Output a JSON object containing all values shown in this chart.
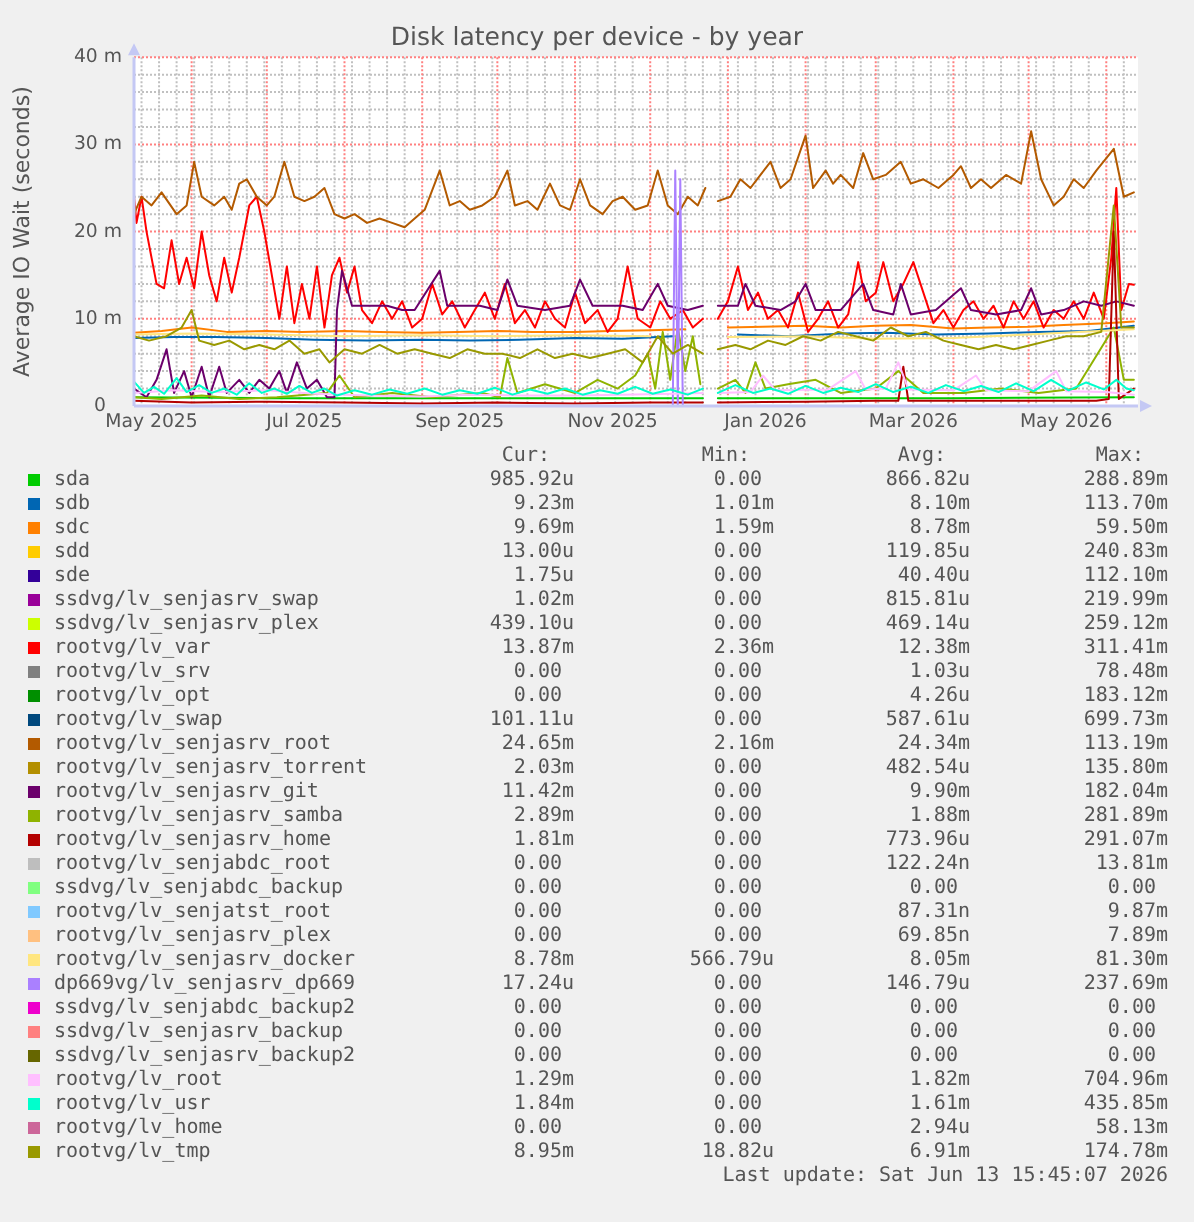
{
  "chart_data": {
    "type": "line",
    "title": "Disk latency per device - by year",
    "ylabel": "Average IO Wait (seconds)",
    "xlim": [
      "2025-05-09",
      "2026-06-13T15:45"
    ],
    "ylim": [
      0,
      40
    ],
    "xticks": [
      {
        "value": "2025-05-16",
        "label": "May 2025"
      },
      {
        "value": "2025-07-16",
        "label": "Jul 2025"
      },
      {
        "value": "2025-09-16",
        "label": "Sep 2025"
      },
      {
        "value": "2025-11-16",
        "label": "Nov 2025"
      },
      {
        "value": "2026-01-16",
        "label": "Jan 2026"
      },
      {
        "value": "2026-03-16",
        "label": "Mar 2026"
      },
      {
        "value": "2026-05-16",
        "label": "May 2026"
      },
      {
        "value": "2025-06-01",
        "label": null
      },
      {
        "value": "2025-07-01",
        "label": null
      },
      {
        "value": "2025-08-01",
        "label": null
      },
      {
        "value": "2025-09-01",
        "label": null
      },
      {
        "value": "2025-10-01",
        "label": null
      },
      {
        "value": "2025-11-01",
        "label": null
      },
      {
        "value": "2025-12-01",
        "label": null
      },
      {
        "value": "2026-01-01",
        "label": null
      },
      {
        "value": "2026-02-01",
        "label": null
      },
      {
        "value": "2026-03-01",
        "label": null
      },
      {
        "value": "2026-04-01",
        "label": null
      },
      {
        "value": "2026-05-01",
        "label": null
      },
      {
        "value": "2026-06-01",
        "label": null
      },
      {
        "value": "2025-05-12",
        "label": null
      },
      {
        "value": "2025-05-19",
        "label": null
      },
      {
        "value": "2025-05-26",
        "label": null
      },
      {
        "value": "2025-06-02",
        "label": null
      },
      {
        "value": "2025-06-09",
        "label": null
      },
      {
        "value": "2025-06-16",
        "label": null
      },
      {
        "value": "2025-06-23",
        "label": null
      },
      {
        "value": "2025-06-30",
        "label": null
      },
      {
        "value": "2025-07-07",
        "label": null
      },
      {
        "value": "2025-07-14",
        "label": null
      },
      {
        "value": "2025-07-21",
        "label": null
      },
      {
        "value": "2025-07-28",
        "label": null
      },
      {
        "value": "2025-08-04",
        "label": null
      },
      {
        "value": "2025-08-11",
        "label": null
      },
      {
        "value": "2025-08-18",
        "label": null
      },
      {
        "value": "2025-08-25",
        "label": null
      },
      {
        "value": "2025-09-08",
        "label": null
      },
      {
        "value": "2025-09-15",
        "label": null
      },
      {
        "value": "2025-09-22",
        "label": null
      },
      {
        "value": "2025-09-29",
        "label": null
      },
      {
        "value": "2025-10-06",
        "label": null
      },
      {
        "value": "2025-10-13",
        "label": null
      },
      {
        "value": "2025-10-20",
        "label": null
      },
      {
        "value": "2025-10-27",
        "label": null
      },
      {
        "value": "2025-11-03",
        "label": null
      },
      {
        "value": "2025-11-10",
        "label": null
      },
      {
        "value": "2025-11-17",
        "label": null
      },
      {
        "value": "2025-11-24",
        "label": null
      },
      {
        "value": "2025-12-08",
        "label": null
      },
      {
        "value": "2025-12-15",
        "label": null
      },
      {
        "value": "2025-12-22",
        "label": null
      },
      {
        "value": "2025-12-29",
        "label": null
      },
      {
        "value": "2026-01-05",
        "label": null
      },
      {
        "value": "2026-01-12",
        "label": null
      },
      {
        "value": "2026-01-19",
        "label": null
      },
      {
        "value": "2026-01-26",
        "label": null
      },
      {
        "value": "2026-02-02",
        "label": null
      },
      {
        "value": "2026-02-09",
        "label": null
      },
      {
        "value": "2026-02-16",
        "label": null
      },
      {
        "value": "2026-02-23",
        "label": null
      },
      {
        "value": "2026-03-02",
        "label": null
      },
      {
        "value": "2026-03-09",
        "label": null
      },
      {
        "value": "2026-03-16",
        "label": null
      },
      {
        "value": "2026-03-23",
        "label": null
      },
      {
        "value": "2026-03-30",
        "label": null
      },
      {
        "value": "2026-04-06",
        "label": null
      },
      {
        "value": "2026-04-13",
        "label": null
      },
      {
        "value": "2026-04-20",
        "label": null
      },
      {
        "value": "2026-04-27",
        "label": null
      },
      {
        "value": "2026-05-04",
        "label": null
      },
      {
        "value": "2026-05-11",
        "label": null
      },
      {
        "value": "2026-05-18",
        "label": null
      },
      {
        "value": "2026-05-25",
        "label": null
      },
      {
        "value": "2026-06-08",
        "label": null
      }
    ],
    "yticks": [
      0,
      {
        "value": 10,
        "label": "10 m"
      },
      {
        "value": 20,
        "label": "20 m"
      },
      {
        "value": 30,
        "label": "30 m"
      },
      {
        "value": 40,
        "label": "40 m"
      },
      {
        "value": 2,
        "label": null
      },
      {
        "value": 4,
        "label": null
      },
      {
        "value": 6,
        "label": null
      },
      {
        "value": 8,
        "label": null
      },
      {
        "value": 12,
        "label": null
      },
      {
        "value": 14,
        "label": null
      },
      {
        "value": 16,
        "label": null
      },
      {
        "value": 18,
        "label": null
      },
      {
        "value": 22,
        "label": null
      },
      {
        "value": 24,
        "label": null
      },
      {
        "value": 26,
        "label": null
      },
      {
        "value": 28,
        "label": null
      },
      {
        "value": 32,
        "label": null
      },
      {
        "value": 34,
        "label": null
      },
      {
        "value": 36,
        "label": null
      },
      {
        "value": 38,
        "label": null
      }
    ],
    "grid": true,
    "legend": "bottom",
    "series": [
      {
        "name": "sda",
        "color": "#00cc00",
        "x": [
          "2025-05-09",
          "2025-07-01",
          "2025-09-01",
          "2025-11-01",
          "2025-12-22",
          "2025-12-25",
          "2025-12-28",
          "2026-02-01",
          "2026-04-01",
          "2026-06-12"
        ],
        "values": [
          1,
          0.9,
          0.9,
          0.9,
          0.9,
          null,
          0.9,
          0.9,
          0.9,
          1
        ]
      },
      {
        "name": "sdb",
        "color": "#0066b3",
        "x": [
          "2025-05-09",
          "2025-05-25",
          "2025-06-10",
          "2025-07-01",
          "2025-07-20",
          "2025-08-10",
          "2025-09-01",
          "2025-09-20",
          "2025-10-10",
          "2025-11-01",
          "2025-11-20",
          "2025-12-10",
          "2025-12-25",
          "2026-01-05",
          "2026-01-25",
          "2026-02-15",
          "2026-03-05",
          "2026-03-25",
          "2026-04-15",
          "2026-05-05",
          "2026-05-25",
          "2026-06-12"
        ],
        "values": [
          7.8,
          7.9,
          7.9,
          7.8,
          7.6,
          7.5,
          7.6,
          7.5,
          7.6,
          7.8,
          7.7,
          8,
          null,
          8.2,
          8,
          8.3,
          8.4,
          8.2,
          8.3,
          8.5,
          8.6,
          9.2
        ]
      },
      {
        "name": "sdc",
        "color": "#ff8000",
        "x": [
          "2025-05-09",
          "2025-05-20",
          "2025-06-01",
          "2025-06-15",
          "2025-07-01",
          "2025-07-15",
          "2025-08-01",
          "2025-08-15",
          "2025-09-01",
          "2025-09-15",
          "2025-10-01",
          "2025-10-15",
          "2025-11-01",
          "2025-11-15",
          "2025-12-01",
          "2025-12-15",
          "2025-12-25",
          "2026-01-01",
          "2026-01-15",
          "2026-02-01",
          "2026-02-15",
          "2026-03-01",
          "2026-03-15",
          "2026-04-01",
          "2026-04-15",
          "2026-05-01",
          "2026-05-15",
          "2026-06-01",
          "2026-06-12"
        ],
        "values": [
          8.4,
          8.6,
          9,
          8.5,
          8.6,
          8.5,
          8.6,
          8.5,
          8.4,
          8.5,
          8.6,
          8.5,
          8.5,
          8.6,
          8.7,
          8.8,
          null,
          9,
          9.1,
          9.2,
          9,
          9.2,
          9.3,
          8.9,
          9,
          9.1,
          9.3,
          9.5,
          9.7
        ]
      },
      {
        "name": "sdd",
        "color": "#ffcc00"
      },
      {
        "name": "sde",
        "color": "#330099"
      },
      {
        "name": "ssdvg/lv_senjasrv_swap",
        "color": "#990099"
      },
      {
        "name": "ssdvg/lv_senjasrv_plex",
        "color": "#ccff00"
      },
      {
        "name": "rootvg/lv_var",
        "color": "#ff0000",
        "x": [
          "2025-05-09",
          "2025-05-10",
          "2025-05-12",
          "2025-05-14",
          "2025-05-18",
          "2025-05-21",
          "2025-05-24",
          "2025-05-27",
          "2025-05-30",
          "2025-06-02",
          "2025-06-05",
          "2025-06-08",
          "2025-06-11",
          "2025-06-14",
          "2025-06-17",
          "2025-06-20",
          "2025-06-24",
          "2025-06-27",
          "2025-06-30",
          "2025-07-03",
          "2025-07-06",
          "2025-07-09",
          "2025-07-12",
          "2025-07-15",
          "2025-07-18",
          "2025-07-21",
          "2025-07-24",
          "2025-07-27",
          "2025-07-30",
          "2025-08-02",
          "2025-08-05",
          "2025-08-08",
          "2025-08-12",
          "2025-08-16",
          "2025-08-20",
          "2025-08-24",
          "2025-08-28",
          "2025-09-01",
          "2025-09-05",
          "2025-09-09",
          "2025-09-13",
          "2025-09-18",
          "2025-09-22",
          "2025-09-26",
          "2025-09-30",
          "2025-10-04",
          "2025-10-08",
          "2025-10-12",
          "2025-10-16",
          "2025-10-20",
          "2025-10-24",
          "2025-10-28",
          "2025-11-01",
          "2025-11-05",
          "2025-11-10",
          "2025-11-14",
          "2025-11-18",
          "2025-11-22",
          "2025-11-26",
          "2025-12-01",
          "2025-12-05",
          "2025-12-09",
          "2025-12-14",
          "2025-12-18",
          "2025-12-22",
          "2025-12-25",
          "2025-12-28",
          "2026-01-01",
          "2026-01-05",
          "2026-01-09",
          "2026-01-13",
          "2026-01-17",
          "2026-01-21",
          "2026-01-25",
          "2026-01-29",
          "2026-02-02",
          "2026-02-06",
          "2026-02-10",
          "2026-02-14",
          "2026-02-18",
          "2026-02-22",
          "2026-02-25",
          "2026-03-01",
          "2026-03-04",
          "2026-03-08",
          "2026-03-12",
          "2026-03-16",
          "2026-03-20",
          "2026-03-24",
          "2026-03-28",
          "2026-04-01",
          "2026-04-05",
          "2026-04-09",
          "2026-04-13",
          "2026-04-17",
          "2026-04-21",
          "2026-04-25",
          "2026-04-29",
          "2026-05-03",
          "2026-05-07",
          "2026-05-11",
          "2026-05-15",
          "2026-05-19",
          "2026-05-23",
          "2026-05-27",
          "2026-05-31",
          "2026-06-03",
          "2026-06-05",
          "2026-06-07",
          "2026-06-10",
          "2026-06-12"
        ],
        "values": [
          24,
          21,
          24,
          20,
          14,
          13.5,
          19,
          14,
          17,
          13.5,
          20,
          15,
          12,
          17,
          13,
          17,
          23,
          24,
          20,
          15,
          10,
          16,
          9.5,
          14,
          10,
          16,
          9,
          15,
          17,
          13,
          16,
          11,
          9.5,
          12,
          10,
          12,
          9,
          10,
          14,
          10.5,
          12,
          9,
          11,
          13,
          10,
          14,
          9.5,
          11,
          9,
          12,
          10,
          9,
          13,
          9.5,
          11,
          8.5,
          10,
          16,
          10,
          9,
          12,
          10,
          11,
          9,
          10,
          null,
          10,
          12,
          16,
          11,
          13,
          10,
          11,
          9,
          13,
          8.5,
          10,
          12,
          9,
          10.5,
          16.5,
          12,
          13,
          16.5,
          12,
          14,
          16.5,
          13,
          9.5,
          11,
          9,
          11,
          12,
          10,
          11.5,
          9,
          12,
          10,
          12,
          9,
          11,
          10,
          12,
          10,
          13,
          10,
          17,
          25,
          11,
          14,
          13.9
        ]
      },
      {
        "name": "rootvg/lv_srv",
        "color": "#808080"
      },
      {
        "name": "rootvg/lv_opt",
        "color": "#008f00"
      },
      {
        "name": "rootvg/lv_swap",
        "color": "#00487d"
      },
      {
        "name": "rootvg/lv_senjasrv_root",
        "color": "#b35a00",
        "x": [
          "2025-05-09",
          "2025-05-12",
          "2025-05-16",
          "2025-05-20",
          "2025-05-26",
          "2025-05-30",
          "2025-06-02",
          "2025-06-05",
          "2025-06-10",
          "2025-06-14",
          "2025-06-17",
          "2025-06-20",
          "2025-06-23",
          "2025-06-27",
          "2025-07-01",
          "2025-07-04",
          "2025-07-08",
          "2025-07-12",
          "2025-07-16",
          "2025-07-20",
          "2025-07-24",
          "2025-07-28",
          "2025-08-01",
          "2025-08-05",
          "2025-08-10",
          "2025-08-15",
          "2025-08-20",
          "2025-08-25",
          "2025-08-29",
          "2025-09-02",
          "2025-09-08",
          "2025-09-12",
          "2025-09-16",
          "2025-09-20",
          "2025-09-25",
          "2025-09-30",
          "2025-10-05",
          "2025-10-08",
          "2025-10-13",
          "2025-10-17",
          "2025-10-22",
          "2025-10-26",
          "2025-10-30",
          "2025-11-03",
          "2025-11-07",
          "2025-11-12",
          "2025-11-16",
          "2025-11-20",
          "2025-11-25",
          "2025-11-30",
          "2025-12-04",
          "2025-12-08",
          "2025-12-12",
          "2025-12-16",
          "2025-12-20",
          "2025-12-23",
          "2025-12-25",
          "2025-12-28",
          "2026-01-02",
          "2026-01-06",
          "2026-01-10",
          "2026-01-14",
          "2026-01-18",
          "2026-01-22",
          "2026-01-26",
          "2026-02-01",
          "2026-02-04",
          "2026-02-09",
          "2026-02-12",
          "2026-02-15",
          "2026-02-20",
          "2026-02-24",
          "2026-02-28",
          "2026-03-05",
          "2026-03-11",
          "2026-03-15",
          "2026-03-20",
          "2026-03-26",
          "2026-04-01",
          "2026-04-04",
          "2026-04-08",
          "2026-04-12",
          "2026-04-16",
          "2026-04-22",
          "2026-04-28",
          "2026-05-02",
          "2026-05-06",
          "2026-05-11",
          "2026-05-15",
          "2026-05-19",
          "2026-05-23",
          "2026-05-28",
          "2026-06-04",
          "2026-06-08",
          "2026-06-12"
        ],
        "values": [
          22,
          24,
          23,
          24.5,
          22,
          23,
          28,
          24,
          23,
          24,
          22.5,
          25.5,
          26,
          24,
          23,
          24,
          28,
          24,
          23.5,
          24,
          25,
          22,
          21.5,
          22,
          21,
          21.5,
          21,
          20.5,
          21.5,
          22.5,
          27,
          23,
          23.5,
          22.5,
          23,
          24,
          27,
          23,
          23.5,
          22.5,
          25.5,
          23,
          22.5,
          26,
          23,
          22,
          23.5,
          24,
          22.5,
          23,
          27,
          23,
          22,
          24,
          23,
          25,
          null,
          23.5,
          24,
          26,
          25,
          26.5,
          28,
          25,
          26,
          31,
          25,
          27,
          25.5,
          26.5,
          25,
          29,
          26,
          26.5,
          28,
          25.5,
          26,
          25,
          26.5,
          27.5,
          25,
          26,
          25,
          26.5,
          25.5,
          31.5,
          26,
          23,
          24,
          26,
          25,
          27,
          29.5,
          24,
          24.5
        ]
      },
      {
        "name": "rootvg/lv_senjasrv_torrent",
        "color": "#b38f00"
      },
      {
        "name": "rootvg/lv_senjasrv_git",
        "color": "#6b006b",
        "x": [
          "2025-05-09",
          "2025-05-14",
          "2025-05-18",
          "2025-05-22",
          "2025-05-25",
          "2025-05-29",
          "2025-06-01",
          "2025-06-05",
          "2025-06-08",
          "2025-06-12",
          "2025-06-15",
          "2025-06-20",
          "2025-06-24",
          "2025-06-28",
          "2025-07-02",
          "2025-07-06",
          "2025-07-09",
          "2025-07-13",
          "2025-07-17",
          "2025-07-21",
          "2025-07-25",
          "2025-07-28",
          "2025-07-29",
          "2025-07-31",
          "2025-08-04",
          "2025-08-10",
          "2025-08-18",
          "2025-08-24",
          "2025-08-29",
          "2025-09-08",
          "2025-09-11",
          "2025-09-15",
          "2025-09-24",
          "2025-10-01",
          "2025-10-05",
          "2025-10-09",
          "2025-10-20",
          "2025-10-30",
          "2025-11-03",
          "2025-11-08",
          "2025-11-20",
          "2025-11-28",
          "2025-12-04",
          "2025-12-08",
          "2025-12-16",
          "2025-12-22",
          "2025-12-25",
          "2025-12-28",
          "2026-01-05",
          "2026-01-08",
          "2026-01-12",
          "2026-01-22",
          "2026-01-28",
          "2026-02-01",
          "2026-02-05",
          "2026-02-15",
          "2026-02-24",
          "2026-02-28",
          "2026-03-08",
          "2026-03-11",
          "2026-03-15",
          "2026-03-25",
          "2026-04-04",
          "2026-04-08",
          "2026-04-18",
          "2026-04-28",
          "2026-05-02",
          "2026-05-06",
          "2026-05-15",
          "2026-05-23",
          "2026-05-30",
          "2026-06-05",
          "2026-06-12"
        ],
        "values": [
          2,
          1,
          3,
          6.5,
          1.5,
          4,
          1,
          4.5,
          1,
          4.5,
          1.5,
          3,
          1.5,
          3,
          2,
          4,
          1.5,
          5,
          2,
          3,
          1,
          1,
          11,
          15.5,
          11.5,
          11.5,
          11.5,
          11,
          11,
          15.5,
          11.5,
          11.5,
          11.5,
          11,
          14.5,
          11.5,
          11,
          11.5,
          14.5,
          11.5,
          11.5,
          11,
          14,
          11.5,
          11,
          11.5,
          null,
          11.5,
          11.5,
          14,
          11.5,
          11,
          12,
          14,
          11,
          11,
          14,
          11,
          10.5,
          14,
          10.5,
          11,
          13.5,
          11,
          10.5,
          11,
          13.5,
          10.5,
          11,
          12,
          11.5,
          12,
          11.5
        ]
      },
      {
        "name": "rootvg/lv_senjasrv_samba",
        "color": "#8fb300",
        "x": [
          "2025-05-09",
          "2025-05-20",
          "2025-06-05",
          "2025-06-20",
          "2025-07-05",
          "2025-07-25",
          "2025-07-30",
          "2025-08-05",
          "2025-08-20",
          "2025-09-05",
          "2025-09-25",
          "2025-10-02",
          "2025-10-05",
          "2025-10-09",
          "2025-10-20",
          "2025-11-01",
          "2025-11-10",
          "2025-11-18",
          "2025-11-25",
          "2025-11-30",
          "2025-12-03",
          "2025-12-06",
          "2025-12-09",
          "2025-12-12",
          "2025-12-15",
          "2025-12-18",
          "2025-12-21",
          "2025-12-25",
          "2025-12-28",
          "2026-01-04",
          "2026-01-08",
          "2026-01-12",
          "2026-01-16",
          "2026-01-25",
          "2026-02-05",
          "2026-02-15",
          "2026-03-01",
          "2026-03-10",
          "2026-03-20",
          "2026-04-05",
          "2026-04-20",
          "2026-05-05",
          "2026-05-20",
          "2026-06-04",
          "2026-06-08",
          "2026-06-12"
        ],
        "values": [
          1,
          0.8,
          1.2,
          0.8,
          1,
          1.5,
          3.5,
          1,
          1.5,
          1,
          1.5,
          1,
          5.5,
          1.5,
          2.5,
          1.5,
          3,
          2,
          3.5,
          6,
          2,
          8.5,
          3,
          9,
          4,
          8,
          2.5,
          null,
          2,
          3,
          1.5,
          5,
          2,
          2.5,
          3,
          1.5,
          2,
          4,
          1.5,
          1.5,
          2,
          1.5,
          2,
          9,
          3,
          3
        ]
      },
      {
        "name": "rootvg/lv_senjasrv_home",
        "color": "#b30000",
        "x": [
          "2025-05-09",
          "2025-06-01",
          "2025-07-01",
          "2025-08-01",
          "2025-09-01",
          "2025-10-01",
          "2025-11-01",
          "2025-12-01",
          "2025-12-22",
          "2025-12-25",
          "2025-12-28",
          "2026-02-01",
          "2026-03-01",
          "2026-03-10",
          "2026-03-12",
          "2026-03-14",
          "2026-04-15",
          "2026-05-20",
          "2026-05-28",
          "2026-06-02",
          "2026-06-04",
          "2026-06-06",
          "2026-06-12"
        ],
        "values": [
          0.6,
          0.4,
          0.5,
          0.4,
          0.3,
          0.4,
          0.3,
          0.4,
          0.4,
          null,
          0.4,
          0.5,
          0.6,
          0.6,
          4.5,
          0.6,
          0.6,
          0.6,
          0.6,
          0.8,
          20,
          0.8,
          2
        ]
      },
      {
        "name": "rootvg/lv_senjabdc_root",
        "color": "#bebebe"
      },
      {
        "name": "ssdvg/lv_senjabdc_backup",
        "color": "#80ff80"
      },
      {
        "name": "rootvg/lv_senjatst_root",
        "color": "#80c9ff"
      },
      {
        "name": "rootvg/lv_senjasrv_plex",
        "color": "#ffc080"
      },
      {
        "name": "rootvg/lv_senjasrv_docker",
        "color": "#ffe680",
        "x": [
          "2025-05-09",
          "2025-06-01",
          "2025-07-01",
          "2025-08-01",
          "2025-09-01",
          "2025-10-01",
          "2025-11-01",
          "2025-12-01",
          "2025-12-25",
          "2026-01-01",
          "2026-02-01",
          "2026-03-01",
          "2026-04-01",
          "2026-05-01",
          "2026-06-12"
        ],
        "values": [
          8.2,
          8.3,
          8.2,
          8,
          8.1,
          8,
          8.1,
          8,
          null,
          7.9,
          8,
          7.7,
          7.8,
          8.2,
          8.8
        ]
      },
      {
        "name": "dp669vg/lv_senjasrv_dp669",
        "color": "#aa80ff",
        "x": [
          "2025-12-10",
          "2025-12-11",
          "2025-12-12",
          "2025-12-13",
          "2025-12-14"
        ],
        "values": [
          0,
          27,
          0,
          26,
          0
        ]
      },
      {
        "name": "ssdvg/lv_senjabdc_backup2",
        "color": "#ee00cc"
      },
      {
        "name": "ssdvg/lv_senjasrv_backup",
        "color": "#ff8080"
      },
      {
        "name": "ssdvg/lv_senjasrv_backup2",
        "color": "#666600"
      },
      {
        "name": "rootvg/lv_root",
        "color": "#ffbfff",
        "x": [
          "2025-05-09",
          "2025-05-25",
          "2025-06-10",
          "2025-07-01",
          "2025-07-20",
          "2025-08-10",
          "2025-09-01",
          "2025-09-20",
          "2025-10-10",
          "2025-11-01",
          "2025-11-20",
          "2025-12-10",
          "2025-12-22",
          "2025-12-25",
          "2025-12-28",
          "2026-01-10",
          "2026-01-15",
          "2026-01-20",
          "2026-02-10",
          "2026-02-21",
          "2026-02-25",
          "2026-03-05",
          "2026-03-10",
          "2026-03-14",
          "2026-04-01",
          "2026-04-10",
          "2026-04-14",
          "2026-05-01",
          "2026-05-12",
          "2026-05-16",
          "2026-06-01",
          "2026-06-12"
        ],
        "values": [
          1.5,
          1.8,
          1.6,
          1.8,
          1.4,
          1.2,
          1.1,
          1.3,
          1.2,
          1.2,
          1.3,
          1.4,
          1.5,
          null,
          1.5,
          1.6,
          3.5,
          1.8,
          1.9,
          4,
          1.9,
          2,
          5,
          1.9,
          1.8,
          3.5,
          1.8,
          1.7,
          4,
          1.7,
          1.6,
          1.3
        ]
      },
      {
        "name": "rootvg/lv_usr",
        "color": "#00ffcc",
        "x": [
          "2025-05-09",
          "2025-05-13",
          "2025-05-17",
          "2025-05-21",
          "2025-05-26",
          "2025-05-30",
          "2025-06-04",
          "2025-06-09",
          "2025-06-14",
          "2025-06-19",
          "2025-06-24",
          "2025-06-29",
          "2025-07-04",
          "2025-07-09",
          "2025-07-14",
          "2025-07-19",
          "2025-07-24",
          "2025-07-29",
          "2025-08-05",
          "2025-08-12",
          "2025-08-19",
          "2025-08-26",
          "2025-09-02",
          "2025-09-09",
          "2025-09-16",
          "2025-09-23",
          "2025-09-30",
          "2025-10-07",
          "2025-10-14",
          "2025-10-21",
          "2025-10-28",
          "2025-11-04",
          "2025-11-11",
          "2025-11-18",
          "2025-11-25",
          "2025-12-02",
          "2025-12-09",
          "2025-12-16",
          "2025-12-22",
          "2025-12-25",
          "2025-12-28",
          "2026-01-04",
          "2026-01-11",
          "2026-01-18",
          "2026-01-25",
          "2026-02-01",
          "2026-02-08",
          "2026-02-15",
          "2026-02-22",
          "2026-03-01",
          "2026-03-08",
          "2026-03-15",
          "2026-03-22",
          "2026-03-29",
          "2026-04-05",
          "2026-04-12",
          "2026-04-19",
          "2026-04-26",
          "2026-05-03",
          "2026-05-10",
          "2026-05-17",
          "2026-05-24",
          "2026-05-31",
          "2026-06-05",
          "2026-06-09",
          "2026-06-12"
        ],
        "values": [
          2.8,
          1.5,
          2.2,
          1.4,
          3.2,
          1.6,
          2.4,
          1.5,
          2,
          1.3,
          2.6,
          1.5,
          2,
          1.4,
          2.3,
          1.5,
          2,
          1.2,
          1.8,
          1.3,
          1.9,
          1.4,
          2,
          1.3,
          1.8,
          1.4,
          2.1,
          1.3,
          1.9,
          1.4,
          2,
          1.3,
          1.8,
          1.4,
          2.2,
          1.4,
          1.9,
          1.3,
          2,
          null,
          1.5,
          2.4,
          1.5,
          2,
          1.4,
          2.3,
          1.5,
          2.1,
          1.6,
          2.5,
          1.6,
          2.2,
          1.5,
          2.4,
          1.7,
          2.3,
          1.6,
          2.6,
          1.7,
          3,
          1.8,
          2.7,
          1.9,
          3,
          2,
          1.8
        ]
      },
      {
        "name": "rootvg/lv_home",
        "color": "#cc6699"
      },
      {
        "name": "rootvg/lv_tmp",
        "color": "#999900",
        "x": [
          "2025-05-09",
          "2025-05-15",
          "2025-05-22",
          "2025-05-28",
          "2025-06-01",
          "2025-06-04",
          "2025-06-10",
          "2025-06-16",
          "2025-06-22",
          "2025-06-28",
          "2025-07-04",
          "2025-07-10",
          "2025-07-16",
          "2025-07-22",
          "2025-07-26",
          "2025-08-01",
          "2025-08-08",
          "2025-08-15",
          "2025-08-22",
          "2025-08-29",
          "2025-09-05",
          "2025-09-12",
          "2025-09-19",
          "2025-09-26",
          "2025-10-03",
          "2025-10-10",
          "2025-10-17",
          "2025-10-24",
          "2025-10-31",
          "2025-11-07",
          "2025-11-14",
          "2025-11-21",
          "2025-11-28",
          "2025-12-04",
          "2025-12-10",
          "2025-12-16",
          "2025-12-22",
          "2025-12-25",
          "2025-12-28",
          "2026-01-04",
          "2026-01-10",
          "2026-01-17",
          "2026-01-24",
          "2026-01-31",
          "2026-02-07",
          "2026-02-14",
          "2026-02-21",
          "2026-02-28",
          "2026-03-07",
          "2026-03-14",
          "2026-03-21",
          "2026-03-28",
          "2026-04-04",
          "2026-04-11",
          "2026-04-18",
          "2026-04-25",
          "2026-05-02",
          "2026-05-09",
          "2026-05-16",
          "2026-05-23",
          "2026-05-30",
          "2026-06-04",
          "2026-06-07",
          "2026-06-12"
        ],
        "values": [
          8,
          7.5,
          8,
          9,
          11,
          7.5,
          7,
          7.5,
          6.5,
          7,
          6.5,
          7.5,
          6,
          6.5,
          5,
          6.5,
          6,
          7,
          6,
          6.5,
          6,
          5.5,
          6.5,
          6,
          6,
          5.5,
          6.5,
          5.5,
          6,
          5.5,
          6,
          6.5,
          5,
          8,
          6,
          7,
          6,
          null,
          6.5,
          7,
          6.5,
          7.5,
          7,
          8,
          7.5,
          8.5,
          8,
          7.5,
          9,
          8,
          8.5,
          7.5,
          7,
          6.5,
          7,
          6.5,
          7,
          7.5,
          8,
          8,
          8.5,
          23,
          9,
          9
        ]
      }
    ],
    "annotations": [
      "Cur:",
      "Min:",
      "Avg:",
      "Max:",
      "985.92u",
      "0.00",
      "866.82u",
      "288.89m",
      "9.23m",
      "1.01m",
      "8.10m",
      "113.70m",
      "9.69m",
      "1.59m",
      "8.78m",
      "59.50m",
      "13.00u",
      "0.00",
      "119.85u",
      "240.83m",
      "1.75u",
      "0.00",
      "40.40u",
      "112.10m",
      "1.02m",
      "0.00",
      "815.81u",
      "219.99m",
      "439.10u",
      "0.00",
      "469.14u",
      "259.12m",
      "13.87m",
      "2.36m",
      "12.38m",
      "311.41m",
      "0.00",
      "0.00",
      "1.03u",
      "78.48m",
      "0.00",
      "0.00",
      "4.26u",
      "183.12m",
      "101.11u",
      "0.00",
      "587.61u",
      "699.73m",
      "24.65m",
      "2.16m",
      "24.34m",
      "113.19m",
      "2.03m",
      "0.00",
      "482.54u",
      "135.80m",
      "11.42m",
      "0.00",
      "9.90m",
      "182.04m",
      "2.89m",
      "0.00",
      "1.88m",
      "281.89m",
      "1.81m",
      "0.00",
      "773.96u",
      "291.07m",
      "0.00",
      "0.00",
      "122.24n",
      "13.81m",
      "0.00",
      "0.00",
      "0.00",
      "0.00",
      "0.00",
      "0.00",
      "87.31n",
      "9.87m",
      "0.00",
      "0.00",
      "69.85n",
      "7.89m",
      "8.78m",
      "566.79u",
      "8.05m",
      "81.30m",
      "17.24u",
      "0.00",
      "146.79u",
      "237.69m",
      "0.00",
      "0.00",
      "0.00",
      "0.00",
      "0.00",
      "0.00",
      "0.00",
      "0.00",
      "0.00",
      "0.00",
      "0.00",
      "0.00",
      "1.29m",
      "0.00",
      "1.82m",
      "704.96m",
      "1.84m",
      "0.00",
      "1.61m",
      "435.85m",
      "0.00",
      "0.00",
      "2.94u",
      "58.13m",
      "8.95m",
      "18.82u",
      "6.91m",
      "174.78m",
      "Last update: Sat Jun 13 15:45:07 2026"
    ]
  }
}
